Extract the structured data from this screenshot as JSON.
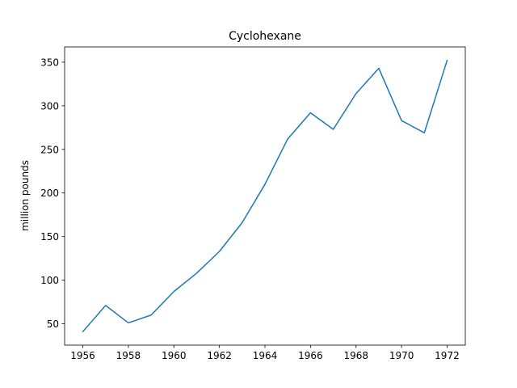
{
  "chart_data": {
    "type": "line",
    "title": "Cyclohexane",
    "xlabel": "",
    "ylabel": "million pounds",
    "x": [
      1956,
      1957,
      1958,
      1959,
      1960,
      1961,
      1962,
      1963,
      1964,
      1965,
      1966,
      1967,
      1968,
      1969,
      1970,
      1971,
      1972
    ],
    "series": [
      {
        "values": [
          41,
          71,
          51,
          60,
          87,
          108,
          133,
          166,
          210,
          262,
          292,
          273,
          314,
          343,
          283,
          269,
          352
        ],
        "color": "#1f77b4"
      }
    ],
    "xlim": [
      1955.2,
      1972.8
    ],
    "ylim": [
      25.45,
      367.55
    ],
    "xticks": [
      "1956",
      "1958",
      "1960",
      "1962",
      "1964",
      "1966",
      "1968",
      "1970",
      "1972"
    ],
    "yticks": [
      "50",
      "100",
      "150",
      "200",
      "250",
      "300",
      "350"
    ],
    "grid": false,
    "legend": "none"
  }
}
